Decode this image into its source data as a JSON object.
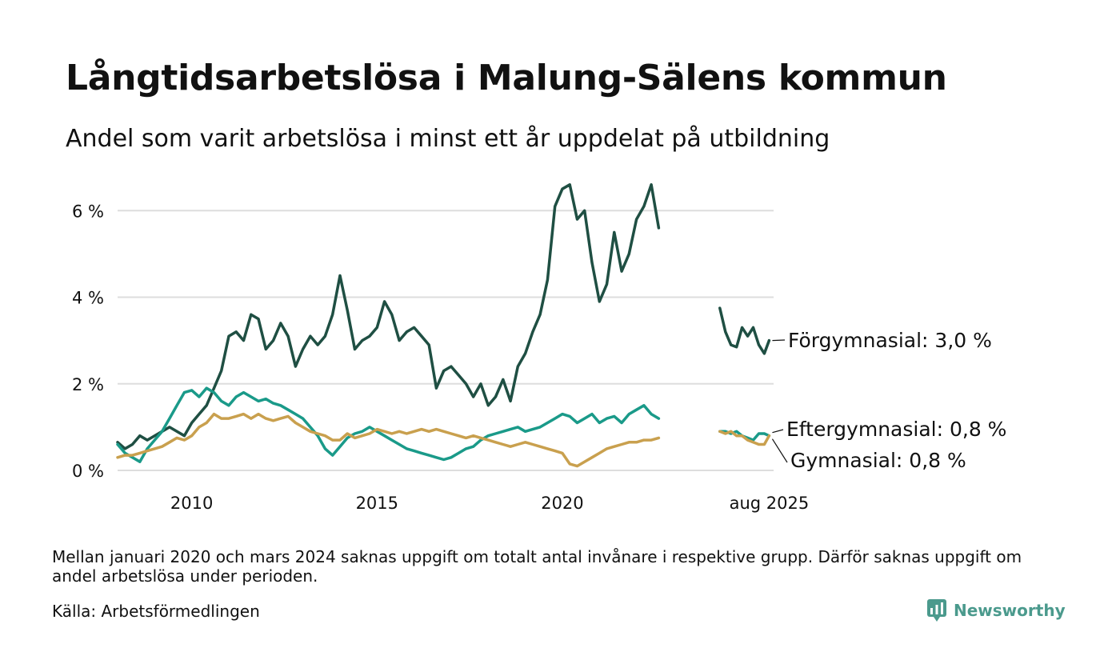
{
  "title": "Långtidsarbetslösa i Malung-Sälens kommun",
  "subtitle": "Andel som varit arbetslösa i minst ett år uppdelat på utbildning",
  "note": "Mellan januari 2020 och mars 2024 saknas uppgift om totalt antal invånare i respektive grupp. Därför saknas uppgift om andel arbetslösa under perioden.",
  "source": "Källa: Arbetsförmedlingen",
  "brand": {
    "name": "Newsworthy",
    "icon": "newsworthy-logo-icon"
  },
  "colors": {
    "forgymnasial": "#1f4f43",
    "eftergymnasial": "#1a9a89",
    "gymnasial": "#c9a04e",
    "grid": "#dddddd",
    "brand": "#4b9a8d"
  },
  "chart_data": {
    "type": "line",
    "x_unit": "year",
    "xlim": [
      2008.0,
      2025.7
    ],
    "ylim": [
      0,
      6.8
    ],
    "ylabel": "",
    "xlabel": "",
    "grid": true,
    "y_ticks": [
      {
        "value": 0,
        "label": "0 %"
      },
      {
        "value": 2,
        "label": "2 %"
      },
      {
        "value": 4,
        "label": "4 %"
      },
      {
        "value": 6,
        "label": "6 %"
      }
    ],
    "x_ticks": [
      {
        "value": 2010,
        "label": "2010"
      },
      {
        "value": 2015,
        "label": "2015"
      },
      {
        "value": 2020,
        "label": "2020"
      },
      {
        "value": 2025.58,
        "label": "aug 2025"
      }
    ],
    "series": [
      {
        "name": "Förgymnasial",
        "end_label": "Förgymnasial: 3,0 %",
        "color": "#1f4f43",
        "segments": [
          [
            [
              2008.0,
              0.65
            ],
            [
              2008.2,
              0.5
            ],
            [
              2008.4,
              0.6
            ],
            [
              2008.6,
              0.8
            ],
            [
              2008.8,
              0.7
            ],
            [
              2009.0,
              0.8
            ],
            [
              2009.2,
              0.9
            ],
            [
              2009.4,
              1.0
            ],
            [
              2009.6,
              0.9
            ],
            [
              2009.8,
              0.8
            ],
            [
              2010.0,
              1.1
            ],
            [
              2010.2,
              1.3
            ],
            [
              2010.4,
              1.5
            ],
            [
              2010.6,
              1.9
            ],
            [
              2010.8,
              2.3
            ],
            [
              2011.0,
              3.1
            ],
            [
              2011.2,
              3.2
            ],
            [
              2011.4,
              3.0
            ],
            [
              2011.6,
              3.6
            ],
            [
              2011.8,
              3.5
            ],
            [
              2012.0,
              2.8
            ],
            [
              2012.2,
              3.0
            ],
            [
              2012.4,
              3.4
            ],
            [
              2012.6,
              3.1
            ],
            [
              2012.8,
              2.4
            ],
            [
              2013.0,
              2.8
            ],
            [
              2013.2,
              3.1
            ],
            [
              2013.4,
              2.9
            ],
            [
              2013.6,
              3.1
            ],
            [
              2013.8,
              3.6
            ],
            [
              2014.0,
              4.5
            ],
            [
              2014.2,
              3.7
            ],
            [
              2014.4,
              2.8
            ],
            [
              2014.6,
              3.0
            ],
            [
              2014.8,
              3.1
            ],
            [
              2015.0,
              3.3
            ],
            [
              2015.2,
              3.9
            ],
            [
              2015.4,
              3.6
            ],
            [
              2015.6,
              3.0
            ],
            [
              2015.8,
              3.2
            ],
            [
              2016.0,
              3.3
            ],
            [
              2016.2,
              3.1
            ],
            [
              2016.4,
              2.9
            ],
            [
              2016.6,
              1.9
            ],
            [
              2016.8,
              2.3
            ],
            [
              2017.0,
              2.4
            ],
            [
              2017.2,
              2.2
            ],
            [
              2017.4,
              2.0
            ],
            [
              2017.6,
              1.7
            ],
            [
              2017.8,
              2.0
            ],
            [
              2018.0,
              1.5
            ],
            [
              2018.2,
              1.7
            ],
            [
              2018.4,
              2.1
            ],
            [
              2018.6,
              1.6
            ],
            [
              2018.8,
              2.4
            ],
            [
              2019.0,
              2.7
            ],
            [
              2019.2,
              3.2
            ],
            [
              2019.4,
              3.6
            ],
            [
              2019.6,
              4.4
            ],
            [
              2019.8,
              6.1
            ],
            [
              2020.0,
              6.5
            ],
            [
              2020.2,
              6.6
            ],
            [
              2020.4,
              5.8
            ],
            [
              2020.6,
              6.0
            ],
            [
              2020.8,
              4.8
            ],
            [
              2021.0,
              3.9
            ],
            [
              2021.2,
              4.3
            ],
            [
              2021.4,
              5.5
            ],
            [
              2021.6,
              4.6
            ],
            [
              2021.8,
              5.0
            ],
            [
              2022.0,
              5.8
            ],
            [
              2022.2,
              6.1
            ],
            [
              2022.4,
              6.6
            ],
            [
              2022.6,
              5.6
            ]
          ],
          [
            [
              2024.25,
              3.75
            ],
            [
              2024.4,
              3.2
            ],
            [
              2024.55,
              2.9
            ],
            [
              2024.7,
              2.85
            ],
            [
              2024.85,
              3.3
            ],
            [
              2025.0,
              3.1
            ],
            [
              2025.15,
              3.3
            ],
            [
              2025.3,
              2.9
            ],
            [
              2025.45,
              2.7
            ],
            [
              2025.58,
              3.0
            ]
          ]
        ]
      },
      {
        "name": "Eftergymnasial",
        "end_label": "Eftergymnasial: 0,8 %",
        "color": "#1a9a89",
        "segments": [
          [
            [
              2008.0,
              0.6
            ],
            [
              2008.2,
              0.4
            ],
            [
              2008.4,
              0.3
            ],
            [
              2008.6,
              0.2
            ],
            [
              2008.8,
              0.5
            ],
            [
              2009.0,
              0.7
            ],
            [
              2009.2,
              0.9
            ],
            [
              2009.4,
              1.2
            ],
            [
              2009.6,
              1.5
            ],
            [
              2009.8,
              1.8
            ],
            [
              2010.0,
              1.85
            ],
            [
              2010.2,
              1.7
            ],
            [
              2010.4,
              1.9
            ],
            [
              2010.6,
              1.8
            ],
            [
              2010.8,
              1.6
            ],
            [
              2011.0,
              1.5
            ],
            [
              2011.2,
              1.7
            ],
            [
              2011.4,
              1.8
            ],
            [
              2011.6,
              1.7
            ],
            [
              2011.8,
              1.6
            ],
            [
              2012.0,
              1.65
            ],
            [
              2012.2,
              1.55
            ],
            [
              2012.4,
              1.5
            ],
            [
              2012.6,
              1.4
            ],
            [
              2012.8,
              1.3
            ],
            [
              2013.0,
              1.2
            ],
            [
              2013.2,
              1.0
            ],
            [
              2013.4,
              0.8
            ],
            [
              2013.6,
              0.5
            ],
            [
              2013.8,
              0.35
            ],
            [
              2014.0,
              0.55
            ],
            [
              2014.2,
              0.75
            ],
            [
              2014.4,
              0.85
            ],
            [
              2014.6,
              0.9
            ],
            [
              2014.8,
              1.0
            ],
            [
              2015.0,
              0.9
            ],
            [
              2015.2,
              0.8
            ],
            [
              2015.4,
              0.7
            ],
            [
              2015.6,
              0.6
            ],
            [
              2015.8,
              0.5
            ],
            [
              2016.0,
              0.45
            ],
            [
              2016.2,
              0.4
            ],
            [
              2016.4,
              0.35
            ],
            [
              2016.6,
              0.3
            ],
            [
              2016.8,
              0.25
            ],
            [
              2017.0,
              0.3
            ],
            [
              2017.2,
              0.4
            ],
            [
              2017.4,
              0.5
            ],
            [
              2017.6,
              0.55
            ],
            [
              2017.8,
              0.7
            ],
            [
              2018.0,
              0.8
            ],
            [
              2018.2,
              0.85
            ],
            [
              2018.4,
              0.9
            ],
            [
              2018.6,
              0.95
            ],
            [
              2018.8,
              1.0
            ],
            [
              2019.0,
              0.9
            ],
            [
              2019.2,
              0.95
            ],
            [
              2019.4,
              1.0
            ],
            [
              2019.6,
              1.1
            ],
            [
              2019.8,
              1.2
            ],
            [
              2020.0,
              1.3
            ],
            [
              2020.2,
              1.25
            ],
            [
              2020.4,
              1.1
            ],
            [
              2020.6,
              1.2
            ],
            [
              2020.8,
              1.3
            ],
            [
              2021.0,
              1.1
            ],
            [
              2021.2,
              1.2
            ],
            [
              2021.4,
              1.25
            ],
            [
              2021.6,
              1.1
            ],
            [
              2021.8,
              1.3
            ],
            [
              2022.0,
              1.4
            ],
            [
              2022.2,
              1.5
            ],
            [
              2022.4,
              1.3
            ],
            [
              2022.6,
              1.2
            ]
          ],
          [
            [
              2024.25,
              0.9
            ],
            [
              2024.4,
              0.9
            ],
            [
              2024.55,
              0.85
            ],
            [
              2024.7,
              0.9
            ],
            [
              2024.85,
              0.8
            ],
            [
              2025.0,
              0.75
            ],
            [
              2025.15,
              0.7
            ],
            [
              2025.3,
              0.85
            ],
            [
              2025.45,
              0.85
            ],
            [
              2025.58,
              0.8
            ]
          ]
        ]
      },
      {
        "name": "Gymnasial",
        "end_label": "Gymnasial: 0,8 %",
        "color": "#c9a04e",
        "segments": [
          [
            [
              2008.0,
              0.3
            ],
            [
              2008.2,
              0.35
            ],
            [
              2008.4,
              0.35
            ],
            [
              2008.6,
              0.4
            ],
            [
              2008.8,
              0.45
            ],
            [
              2009.0,
              0.5
            ],
            [
              2009.2,
              0.55
            ],
            [
              2009.4,
              0.65
            ],
            [
              2009.6,
              0.75
            ],
            [
              2009.8,
              0.7
            ],
            [
              2010.0,
              0.8
            ],
            [
              2010.2,
              1.0
            ],
            [
              2010.4,
              1.1
            ],
            [
              2010.6,
              1.3
            ],
            [
              2010.8,
              1.2
            ],
            [
              2011.0,
              1.2
            ],
            [
              2011.2,
              1.25
            ],
            [
              2011.4,
              1.3
            ],
            [
              2011.6,
              1.2
            ],
            [
              2011.8,
              1.3
            ],
            [
              2012.0,
              1.2
            ],
            [
              2012.2,
              1.15
            ],
            [
              2012.4,
              1.2
            ],
            [
              2012.6,
              1.25
            ],
            [
              2012.8,
              1.1
            ],
            [
              2013.0,
              1.0
            ],
            [
              2013.2,
              0.9
            ],
            [
              2013.4,
              0.85
            ],
            [
              2013.6,
              0.8
            ],
            [
              2013.8,
              0.7
            ],
            [
              2014.0,
              0.7
            ],
            [
              2014.2,
              0.85
            ],
            [
              2014.4,
              0.75
            ],
            [
              2014.6,
              0.8
            ],
            [
              2014.8,
              0.85
            ],
            [
              2015.0,
              0.95
            ],
            [
              2015.2,
              0.9
            ],
            [
              2015.4,
              0.85
            ],
            [
              2015.6,
              0.9
            ],
            [
              2015.8,
              0.85
            ],
            [
              2016.0,
              0.9
            ],
            [
              2016.2,
              0.95
            ],
            [
              2016.4,
              0.9
            ],
            [
              2016.6,
              0.95
            ],
            [
              2016.8,
              0.9
            ],
            [
              2017.0,
              0.85
            ],
            [
              2017.2,
              0.8
            ],
            [
              2017.4,
              0.75
            ],
            [
              2017.6,
              0.8
            ],
            [
              2017.8,
              0.75
            ],
            [
              2018.0,
              0.7
            ],
            [
              2018.2,
              0.65
            ],
            [
              2018.4,
              0.6
            ],
            [
              2018.6,
              0.55
            ],
            [
              2018.8,
              0.6
            ],
            [
              2019.0,
              0.65
            ],
            [
              2019.2,
              0.6
            ],
            [
              2019.4,
              0.55
            ],
            [
              2019.6,
              0.5
            ],
            [
              2019.8,
              0.45
            ],
            [
              2020.0,
              0.4
            ],
            [
              2020.2,
              0.15
            ],
            [
              2020.4,
              0.1
            ],
            [
              2020.6,
              0.2
            ],
            [
              2020.8,
              0.3
            ],
            [
              2021.0,
              0.4
            ],
            [
              2021.2,
              0.5
            ],
            [
              2021.4,
              0.55
            ],
            [
              2021.6,
              0.6
            ],
            [
              2021.8,
              0.65
            ],
            [
              2022.0,
              0.65
            ],
            [
              2022.2,
              0.7
            ],
            [
              2022.4,
              0.7
            ],
            [
              2022.6,
              0.75
            ]
          ],
          [
            [
              2024.25,
              0.9
            ],
            [
              2024.4,
              0.85
            ],
            [
              2024.55,
              0.9
            ],
            [
              2024.7,
              0.8
            ],
            [
              2024.85,
              0.8
            ],
            [
              2025.0,
              0.7
            ],
            [
              2025.15,
              0.65
            ],
            [
              2025.3,
              0.6
            ],
            [
              2025.45,
              0.6
            ],
            [
              2025.58,
              0.8
            ]
          ]
        ]
      }
    ]
  }
}
